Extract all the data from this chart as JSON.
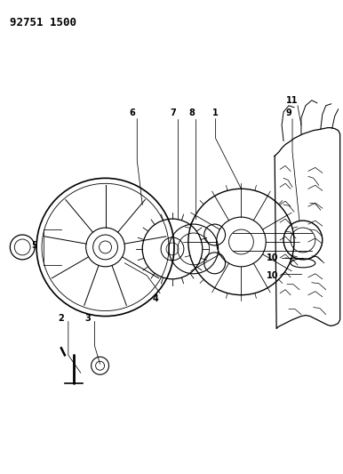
{
  "title": "92751 1500",
  "bg_color": "#ffffff",
  "line_color": "#000000",
  "fig_width": 3.86,
  "fig_height": 5.33,
  "dpi": 100
}
